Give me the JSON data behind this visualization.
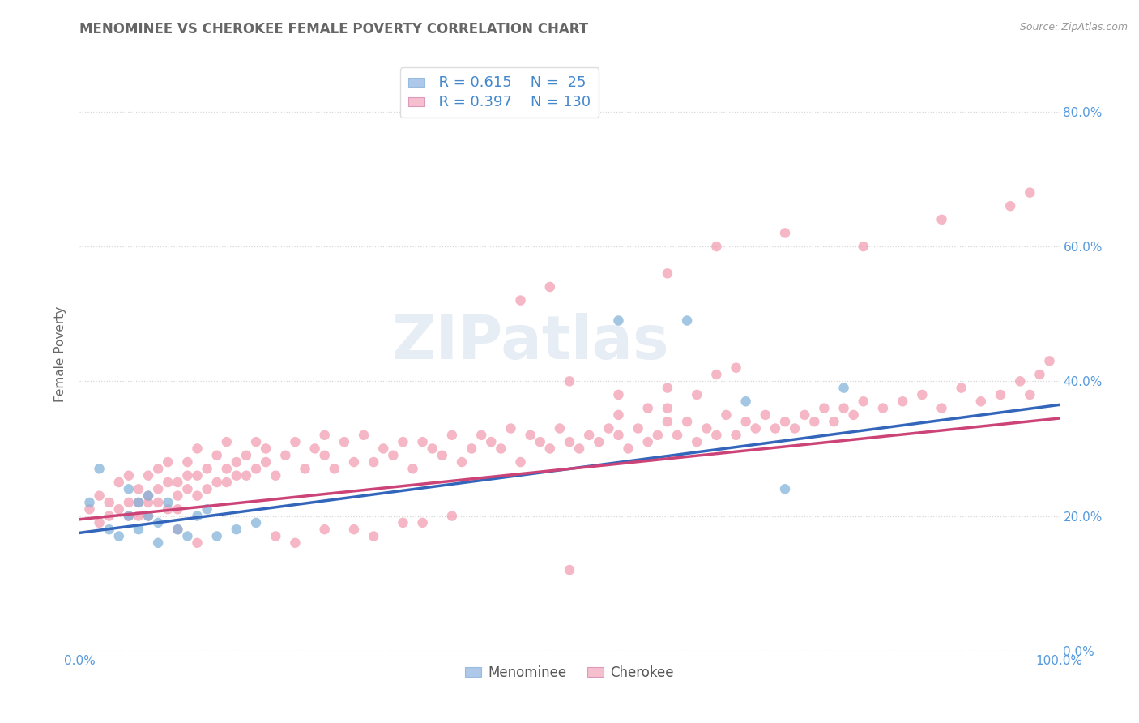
{
  "title": "MENOMINEE VS CHEROKEE FEMALE POVERTY CORRELATION CHART",
  "source": "Source: ZipAtlas.com",
  "ylabel": "Female Poverty",
  "watermark": "ZIPatlas",
  "legend_entries": [
    {
      "label": "Menominee",
      "R": 0.615,
      "N": 25,
      "color": "#adc8e8",
      "marker_color": "#85b3d9"
    },
    {
      "label": "Cherokee",
      "R": 0.397,
      "N": 130,
      "color": "#f5bfce",
      "marker_color": "#f090a8"
    }
  ],
  "menominee_x": [
    0.01,
    0.02,
    0.03,
    0.04,
    0.05,
    0.05,
    0.06,
    0.06,
    0.07,
    0.07,
    0.08,
    0.08,
    0.09,
    0.1,
    0.11,
    0.12,
    0.13,
    0.14,
    0.16,
    0.18,
    0.55,
    0.62,
    0.68,
    0.72,
    0.78
  ],
  "menominee_y": [
    0.22,
    0.27,
    0.18,
    0.17,
    0.24,
    0.2,
    0.22,
    0.18,
    0.23,
    0.2,
    0.16,
    0.19,
    0.22,
    0.18,
    0.17,
    0.2,
    0.21,
    0.17,
    0.18,
    0.19,
    0.49,
    0.49,
    0.37,
    0.24,
    0.39
  ],
  "cherokee_x": [
    0.01,
    0.02,
    0.02,
    0.03,
    0.03,
    0.04,
    0.04,
    0.05,
    0.05,
    0.05,
    0.06,
    0.06,
    0.06,
    0.07,
    0.07,
    0.07,
    0.07,
    0.08,
    0.08,
    0.08,
    0.09,
    0.09,
    0.09,
    0.1,
    0.1,
    0.1,
    0.11,
    0.11,
    0.11,
    0.12,
    0.12,
    0.12,
    0.13,
    0.13,
    0.14,
    0.14,
    0.15,
    0.15,
    0.15,
    0.16,
    0.16,
    0.17,
    0.17,
    0.18,
    0.18,
    0.19,
    0.19,
    0.2,
    0.21,
    0.22,
    0.23,
    0.24,
    0.25,
    0.25,
    0.26,
    0.27,
    0.28,
    0.29,
    0.3,
    0.31,
    0.32,
    0.33,
    0.34,
    0.35,
    0.36,
    0.37,
    0.38,
    0.39,
    0.4,
    0.41,
    0.42,
    0.43,
    0.44,
    0.45,
    0.46,
    0.47,
    0.48,
    0.49,
    0.5,
    0.51,
    0.52,
    0.53,
    0.54,
    0.55,
    0.56,
    0.57,
    0.58,
    0.59,
    0.6,
    0.61,
    0.62,
    0.63,
    0.64,
    0.65,
    0.66,
    0.67,
    0.68,
    0.69,
    0.7,
    0.71,
    0.72,
    0.73,
    0.74,
    0.75,
    0.76,
    0.77,
    0.78,
    0.79,
    0.8,
    0.82,
    0.84,
    0.86,
    0.88,
    0.9,
    0.92,
    0.94,
    0.96,
    0.97,
    0.98,
    0.99,
    0.5,
    0.55,
    0.55,
    0.58,
    0.6,
    0.6,
    0.63,
    0.65,
    0.67,
    0.5,
    0.1,
    0.12,
    0.2,
    0.22,
    0.25,
    0.28,
    0.3,
    0.33,
    0.35,
    0.38
  ],
  "cherokee_y": [
    0.21,
    0.19,
    0.23,
    0.2,
    0.22,
    0.21,
    0.25,
    0.22,
    0.2,
    0.26,
    0.22,
    0.24,
    0.2,
    0.23,
    0.22,
    0.26,
    0.2,
    0.22,
    0.24,
    0.27,
    0.21,
    0.25,
    0.28,
    0.23,
    0.25,
    0.21,
    0.26,
    0.24,
    0.28,
    0.23,
    0.26,
    0.3,
    0.24,
    0.27,
    0.25,
    0.29,
    0.25,
    0.27,
    0.31,
    0.26,
    0.28,
    0.26,
    0.29,
    0.27,
    0.31,
    0.28,
    0.3,
    0.26,
    0.29,
    0.31,
    0.27,
    0.3,
    0.29,
    0.32,
    0.27,
    0.31,
    0.28,
    0.32,
    0.28,
    0.3,
    0.29,
    0.31,
    0.27,
    0.31,
    0.3,
    0.29,
    0.32,
    0.28,
    0.3,
    0.32,
    0.31,
    0.3,
    0.33,
    0.28,
    0.32,
    0.31,
    0.3,
    0.33,
    0.31,
    0.3,
    0.32,
    0.31,
    0.33,
    0.32,
    0.3,
    0.33,
    0.31,
    0.32,
    0.34,
    0.32,
    0.34,
    0.31,
    0.33,
    0.32,
    0.35,
    0.32,
    0.34,
    0.33,
    0.35,
    0.33,
    0.34,
    0.33,
    0.35,
    0.34,
    0.36,
    0.34,
    0.36,
    0.35,
    0.37,
    0.36,
    0.37,
    0.38,
    0.36,
    0.39,
    0.37,
    0.38,
    0.4,
    0.38,
    0.41,
    0.43,
    0.4,
    0.38,
    0.35,
    0.36,
    0.39,
    0.36,
    0.38,
    0.41,
    0.42,
    0.12,
    0.18,
    0.16,
    0.17,
    0.16,
    0.18,
    0.18,
    0.17,
    0.19,
    0.19,
    0.2
  ],
  "cherokee_outliers_x": [
    0.45,
    0.48,
    0.6,
    0.65,
    0.72,
    0.8,
    0.88,
    0.95,
    0.97
  ],
  "cherokee_outliers_y": [
    0.52,
    0.54,
    0.56,
    0.6,
    0.62,
    0.6,
    0.64,
    0.66,
    0.68
  ],
  "background_color": "#ffffff",
  "grid_color": "#cccccc",
  "title_color": "#666666",
  "axis_label_color": "#666666",
  "tick_color": "#5599dd",
  "legend_stat_color": "#4488cc",
  "menominee_line_color": "#3366bb",
  "cherokee_line_color": "#cc4477",
  "marker_size": 9,
  "xlim": [
    0,
    1.0
  ],
  "ylim": [
    0.0,
    0.88
  ],
  "yticks": [
    0.0,
    0.2,
    0.4,
    0.6,
    0.8
  ],
  "ytick_labels": [
    "0.0%",
    "20.0%",
    "40.0%",
    "60.0%",
    "80.0%"
  ],
  "xtick_labels": [
    "0.0%",
    "",
    "",
    "",
    "",
    "",
    "",
    "",
    "",
    "",
    "100.0%"
  ],
  "men_line_x0": 0.0,
  "men_line_y0": 0.175,
  "men_line_x1": 1.0,
  "men_line_y1": 0.365,
  "cher_line_x0": 0.0,
  "cher_line_y0": 0.195,
  "cher_line_x1": 1.0,
  "cher_line_y1": 0.345
}
